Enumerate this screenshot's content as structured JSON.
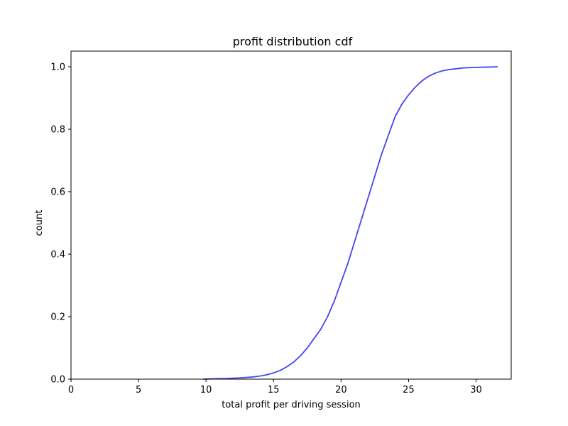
{
  "chart_data": {
    "type": "line",
    "title": "profit distribution cdf",
    "xlabel": "total profit per driving session",
    "ylabel": "count",
    "xlim": [
      0,
      32.6
    ],
    "ylim": [
      0,
      1.05
    ],
    "xticks": [
      0,
      5,
      10,
      15,
      20,
      25,
      30
    ],
    "yticks": [
      0.0,
      0.2,
      0.4,
      0.6,
      0.8,
      1.0
    ],
    "xtick_labels": [
      "0",
      "5",
      "10",
      "15",
      "20",
      "25",
      "30"
    ],
    "ytick_labels": [
      "0.0",
      "0.2",
      "0.4",
      "0.6",
      "0.8",
      "1.0"
    ],
    "grid": false,
    "series": [
      {
        "color": "#4444ee",
        "x": [
          9.8,
          10.5,
          11.5,
          12.5,
          13.5,
          14.0,
          14.5,
          15.0,
          15.5,
          16.0,
          16.5,
          17.0,
          17.5,
          18.0,
          18.5,
          19.0,
          19.5,
          20.0,
          20.5,
          21.0,
          21.5,
          22.0,
          22.5,
          23.0,
          23.5,
          24.0,
          24.5,
          25.0,
          25.5,
          26.0,
          26.5,
          27.0,
          27.5,
          28.0,
          29.0,
          30.0,
          31.0,
          31.6
        ],
        "y": [
          0.0,
          0.001,
          0.002,
          0.004,
          0.007,
          0.01,
          0.014,
          0.02,
          0.028,
          0.04,
          0.055,
          0.075,
          0.1,
          0.13,
          0.16,
          0.2,
          0.25,
          0.31,
          0.37,
          0.44,
          0.51,
          0.58,
          0.65,
          0.72,
          0.78,
          0.84,
          0.88,
          0.91,
          0.935,
          0.955,
          0.97,
          0.98,
          0.987,
          0.991,
          0.996,
          0.998,
          0.999,
          1.0
        ]
      }
    ]
  }
}
